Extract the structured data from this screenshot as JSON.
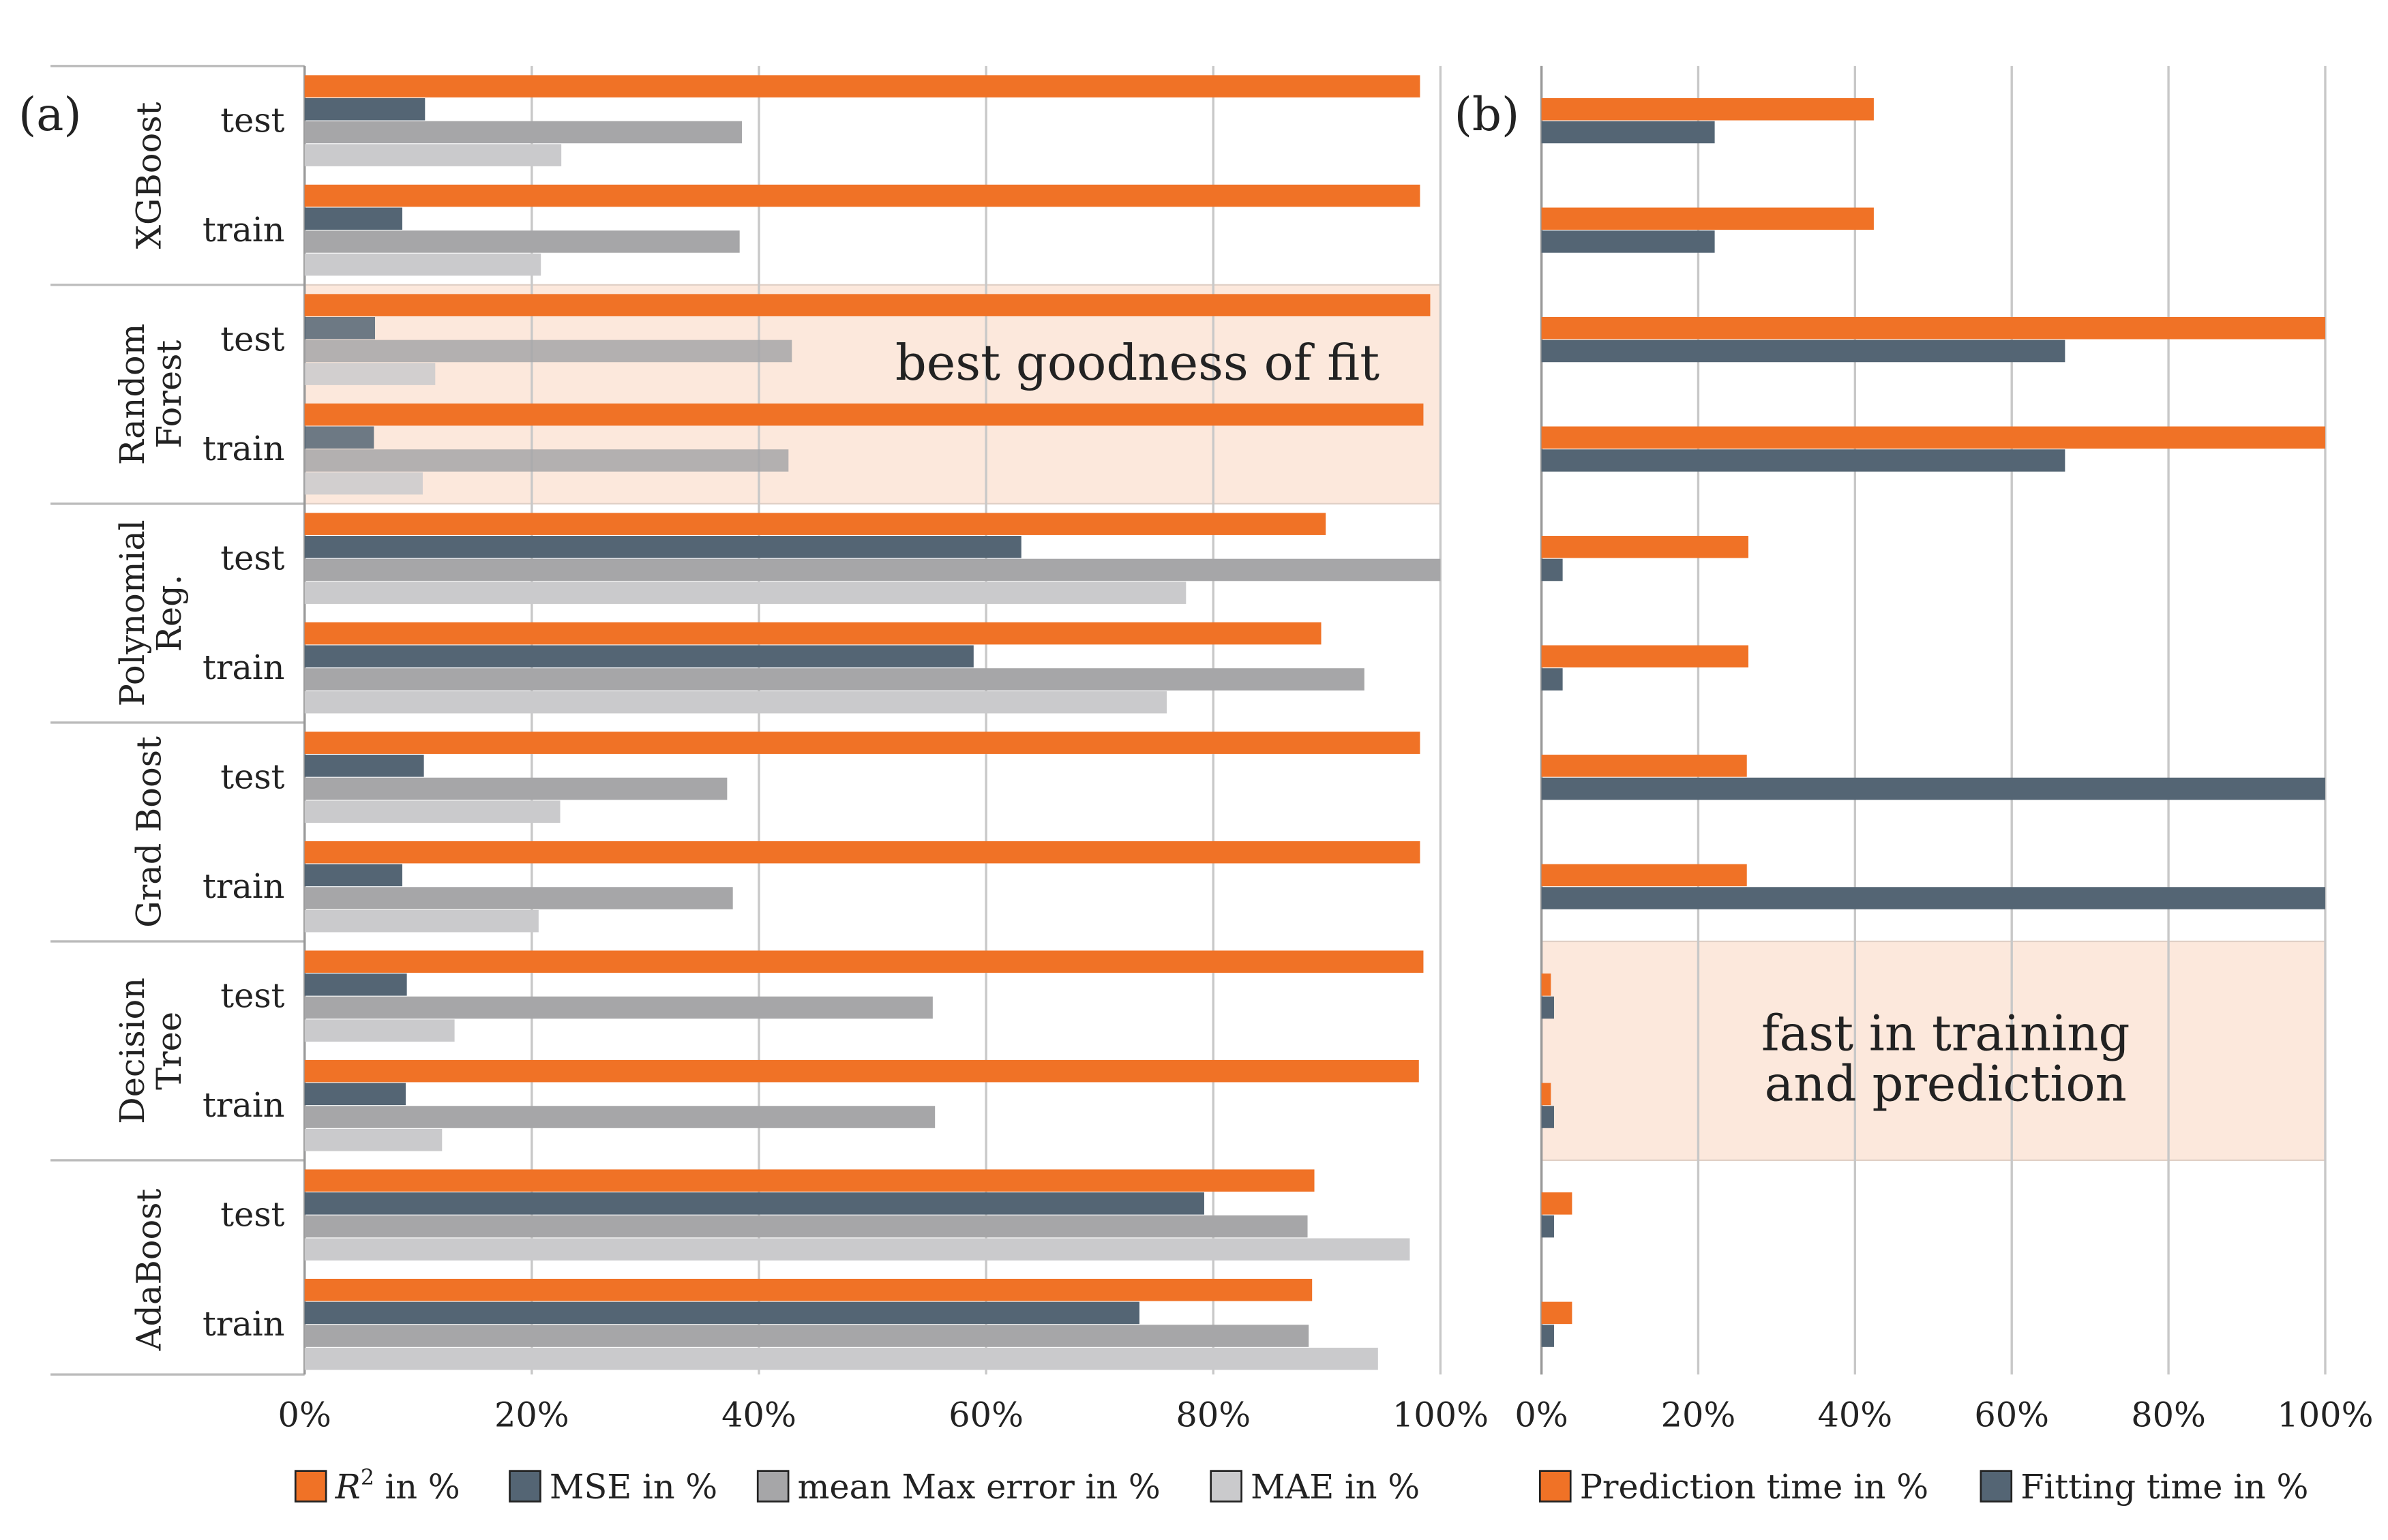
{
  "colors": {
    "r2": "#f07226",
    "mse": "#546574",
    "maxerr": "#a6a6a8",
    "mae": "#cacacc",
    "pred": "#f07226",
    "fit": "#546574",
    "highlight": "#fce8dc",
    "grid": "#c8c8c8"
  },
  "chart_data": [
    {
      "panel_label": "(a)",
      "type": "bar",
      "orientation": "horizontal",
      "groups": [
        "XGBoost",
        "Random Forest",
        "Polynomial Reg.",
        "Grad Boost",
        "Decision Tree",
        "AdaBoost"
      ],
      "group_label_lines": [
        [
          "XGBoost"
        ],
        [
          "Random",
          "Forest"
        ],
        [
          "Polynomial",
          "Reg."
        ],
        [
          "Grad Boost"
        ],
        [
          "Decision",
          "Tree"
        ],
        [
          "AdaBoost"
        ]
      ],
      "subgroups": [
        "test",
        "train"
      ],
      "xlim": [
        0,
        100
      ],
      "xticks": [
        "0%",
        "20%",
        "40%",
        "60%",
        "80%",
        "100%"
      ],
      "grid": true,
      "legend_position": "bottom",
      "series": [
        {
          "key": "r2",
          "name": "R² in %",
          "values": [
            [
              98.2,
              98.2
            ],
            [
              99.1,
              98.5
            ],
            [
              89.9,
              89.5
            ],
            [
              98.2,
              98.2
            ],
            [
              98.5,
              98.1
            ],
            [
              88.9,
              88.7
            ]
          ]
        },
        {
          "key": "mse",
          "name": "MSE in %",
          "values": [
            [
              10.6,
              8.6
            ],
            [
              6.2,
              6.1
            ],
            [
              63.1,
              58.9
            ],
            [
              10.5,
              8.6
            ],
            [
              9.0,
              8.9
            ],
            [
              79.2,
              73.5
            ]
          ]
        },
        {
          "key": "maxerr",
          "name": "mean Max error in %",
          "values": [
            [
              38.5,
              38.3
            ],
            [
              42.9,
              42.6
            ],
            [
              100,
              93.3
            ],
            [
              37.2,
              37.7
            ],
            [
              55.3,
              55.5
            ],
            [
              88.3,
              88.4
            ]
          ]
        },
        {
          "key": "mae",
          "name": "MAE in %",
          "values": [
            [
              22.6,
              20.8
            ],
            [
              11.5,
              10.4
            ],
            [
              77.6,
              75.9
            ],
            [
              22.5,
              20.6
            ],
            [
              13.2,
              12.1
            ],
            [
              97.3,
              94.5
            ]
          ]
        }
      ],
      "annotation": {
        "text": "best goodness of fit",
        "group": "Random Forest"
      }
    },
    {
      "panel_label": "(b)",
      "type": "bar",
      "orientation": "horizontal",
      "xlim": [
        0,
        100
      ],
      "xticks": [
        "0%",
        "20%",
        "40%",
        "60%",
        "80%",
        "100%"
      ],
      "grid": true,
      "legend_position": "bottom",
      "series": [
        {
          "key": "pred",
          "name": "Prediction time in %",
          "values": [
            [
              42.4,
              42.4
            ],
            [
              100,
              100
            ],
            [
              26.4,
              26.4
            ],
            [
              26.2,
              26.2
            ],
            [
              1.2,
              1.2
            ],
            [
              3.9,
              3.9
            ]
          ]
        },
        {
          "key": "fit",
          "name": "Fitting time in %",
          "values": [
            [
              22.1,
              22.1
            ],
            [
              66.8,
              66.8
            ],
            [
              2.7,
              2.7
            ],
            [
              100,
              100
            ],
            [
              1.6,
              1.6
            ],
            [
              1.6,
              1.6
            ]
          ]
        }
      ],
      "annotation": {
        "lines": [
          "fast in training",
          "and prediction"
        ],
        "group": "Decision Tree"
      }
    }
  ]
}
